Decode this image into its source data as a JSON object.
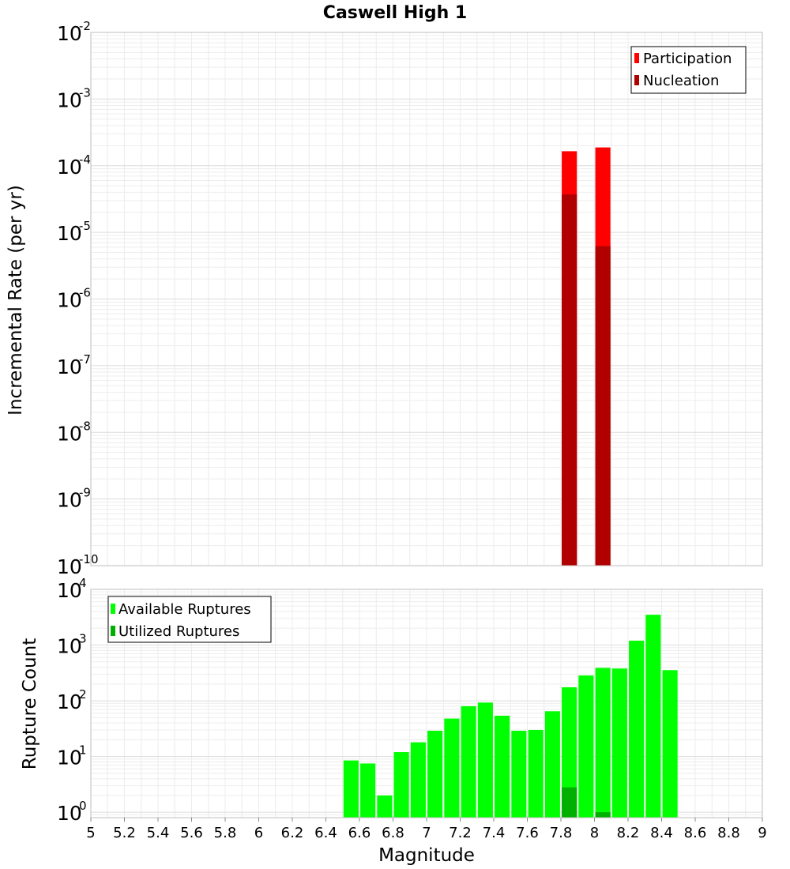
{
  "chart_data": [
    {
      "type": "bar",
      "title": "Caswell High 1",
      "ylabel": "Incremental Rate (per yr)",
      "yscale": "log",
      "ylim_exponents": [
        -10,
        -2
      ],
      "xlim": [
        5,
        9
      ],
      "bar_width": 0.09,
      "legend_position": "top-right",
      "series": [
        {
          "name": "Participation",
          "color": "#ff0000",
          "x": [
            7.85,
            8.05
          ],
          "values": [
            0.000165,
            0.000188
          ]
        },
        {
          "name": "Nucleation",
          "color": "#b00000",
          "x": [
            7.85,
            8.05
          ],
          "values": [
            3.7e-05,
            6.2e-06
          ]
        }
      ]
    },
    {
      "type": "bar",
      "ylabel": "Rupture Count",
      "xlabel": "Magnitude",
      "yscale": "log",
      "ylim_exponents": [
        0,
        4
      ],
      "y_min": 0.8,
      "xlim": [
        5,
        9
      ],
      "bar_width": 0.09,
      "legend_position": "top-left",
      "xticks": [
        "5",
        "5.2",
        "5.4",
        "5.6",
        "5.8",
        "6",
        "6.2",
        "6.4",
        "6.6",
        "6.8",
        "7",
        "7.2",
        "7.4",
        "7.6",
        "7.8",
        "8",
        "8.2",
        "8.4",
        "8.6",
        "8.8",
        "9"
      ],
      "series": [
        {
          "name": "Available Ruptures",
          "color": "#00ff00",
          "x": [
            6.55,
            6.65,
            6.75,
            6.85,
            6.95,
            7.05,
            7.15,
            7.25,
            7.35,
            7.45,
            7.55,
            7.65,
            7.75,
            7.85,
            7.95,
            8.05,
            8.15,
            8.25,
            8.35,
            8.45
          ],
          "values": [
            8.5,
            7.5,
            2,
            12,
            18,
            29,
            48,
            80,
            93,
            54,
            29,
            30,
            65,
            175,
            285,
            390,
            380,
            1200,
            3500,
            355
          ]
        },
        {
          "name": "Utilized Ruptures",
          "color": "#00b000",
          "x": [
            7.85,
            8.05
          ],
          "values": [
            2.8,
            1
          ]
        }
      ]
    }
  ]
}
